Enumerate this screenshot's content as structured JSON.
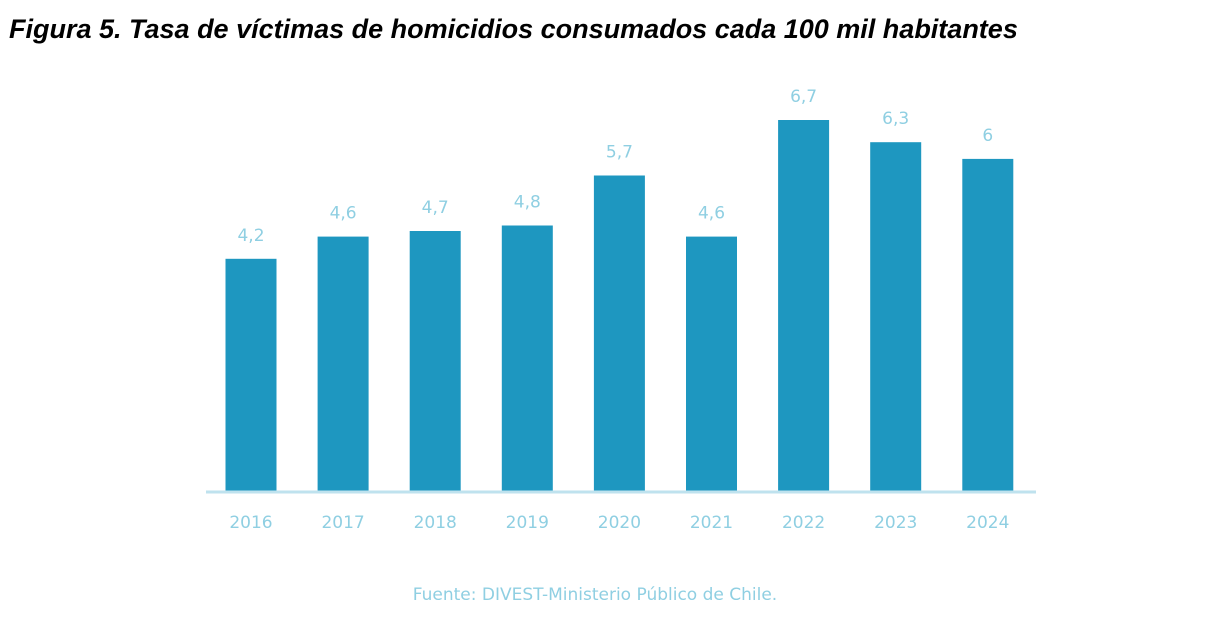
{
  "figure": {
    "title": "Figura 5. Tasa de víctimas de homicidios consumados cada 100 mil habitantes",
    "source": "Fuente: DIVEST-Ministerio Público de Chile."
  },
  "colors": {
    "bar": "#1e97c0",
    "axis": "#bfe2ee",
    "label": "#8fcfe2"
  },
  "chart_data": {
    "type": "bar",
    "title": "Figura 5. Tasa de víctimas de homicidios consumados cada 100 mil habitantes",
    "xlabel": "",
    "ylabel": "",
    "categories": [
      "2016",
      "2017",
      "2018",
      "2019",
      "2020",
      "2021",
      "2022",
      "2023",
      "2024"
    ],
    "values": [
      4.2,
      4.6,
      4.7,
      4.8,
      5.7,
      4.6,
      6.7,
      6.3,
      6
    ],
    "value_labels": [
      "4,2",
      "4,6",
      "4,7",
      "4,8",
      "5,7",
      "4,6",
      "6,7",
      "6,3",
      "6"
    ],
    "ylim": [
      0,
      6.7
    ],
    "grid": false,
    "legend": "none",
    "annotations": [
      "Fuente: DIVEST-Ministerio Público de Chile."
    ]
  }
}
